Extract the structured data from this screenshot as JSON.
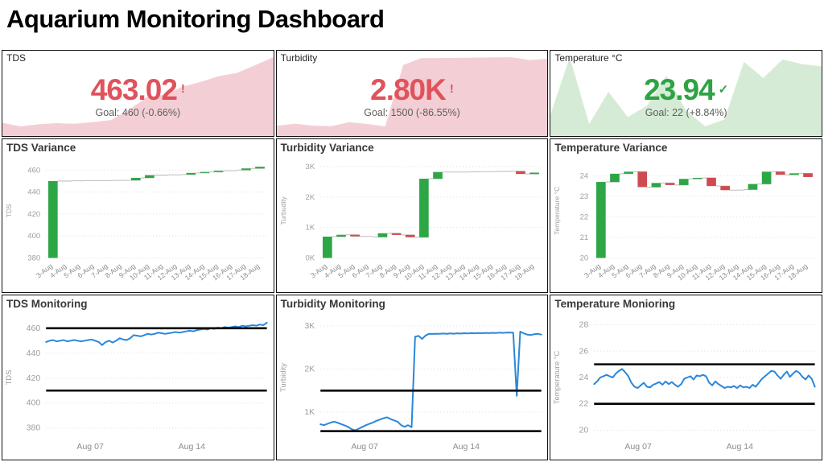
{
  "page": {
    "title": "Aquarium Monitoring Dashboard"
  },
  "colors": {
    "increase_green": "#2DA646",
    "decrease_red": "#CE4B52",
    "connector_gray": "#BDBDBD",
    "line_blue": "#2B87DA",
    "grid_gray": "#DCDCDC",
    "tick_gray": "#9E9E9E",
    "axis_label_gray": "#8C8C8C",
    "ref_line_black": "#000000",
    "kpi_red": "#E0535C",
    "kpi_red_fill": "#F3CFD5",
    "kpi_green": "#2FA344",
    "kpi_green_fill": "#D5EBD5"
  },
  "chart_data": [
    {
      "id": "tds-kpi",
      "type": "area",
      "title": "TDS",
      "value": "463.02",
      "badge": "!",
      "status": "off-goal",
      "goal": "Goal: 460 (-0.66%)",
      "accent": "#E0535C",
      "fill": "#F3CFD5",
      "values": [
        450.5,
        449.8,
        450.2,
        450.4,
        450.3,
        450.6,
        451,
        452.9,
        455.4,
        455.9,
        457.4,
        458.3,
        459.4,
        460.0,
        461.5,
        463.0
      ]
    },
    {
      "id": "tds-variance",
      "type": "waterfall",
      "title": "TDS Variance",
      "y_label": "TDS",
      "baseline": 380,
      "ylim": [
        380,
        466
      ],
      "y_ticks": [
        380,
        400,
        420,
        440,
        460
      ],
      "tick_labels": [
        "380",
        "400",
        "420",
        "440",
        "460"
      ],
      "categories": [
        "3-Aug",
        "4-Aug",
        "5-Aug",
        "6-Aug",
        "7-Aug",
        "8-Aug",
        "9-Aug",
        "10-Aug",
        "11-Aug",
        "12-Aug",
        "13-Aug",
        "14-Aug",
        "15-Aug",
        "16-Aug",
        "17-Aug",
        "18-Aug"
      ],
      "cumulative": [
        450.0,
        450.2,
        450.4,
        450.4,
        450.6,
        450.7,
        452.9,
        455.4,
        455.6,
        455.9,
        457.4,
        458.3,
        459.4,
        460.0,
        461.5,
        463.0
      ]
    },
    {
      "id": "tds-monitoring",
      "type": "line",
      "title": "TDS Monitoring",
      "y_label": "TDS",
      "ylim": [
        374,
        467
      ],
      "y_ticks": [
        380,
        400,
        420,
        440,
        460
      ],
      "tick_labels": [
        "380",
        "400",
        "420",
        "440",
        "460"
      ],
      "ref_lines": [
        460,
        410
      ],
      "x_labels": [
        {
          "label": "Aug 07",
          "f": 0.2
        },
        {
          "label": "Aug 14",
          "f": 0.66
        }
      ],
      "values": [
        449,
        450,
        450.5,
        449.5,
        450,
        450.5,
        449.5,
        450,
        450.5,
        450,
        449.5,
        450,
        450.5,
        451,
        450,
        449,
        446.5,
        449,
        450,
        448.5,
        450,
        452,
        451,
        450.5,
        452,
        454.5,
        454,
        453.5,
        454.5,
        455.5,
        455,
        455.5,
        456.5,
        456,
        455.5,
        456,
        456.5,
        457,
        456.5,
        457,
        457.5,
        458,
        457.5,
        458.5,
        459,
        459.5,
        459,
        460,
        459.5,
        460.5,
        460,
        461,
        460.5,
        461,
        461.5,
        461,
        462,
        461.5,
        462,
        462.5,
        462,
        463,
        462.5,
        464.5
      ]
    },
    {
      "id": "turbidity-kpi",
      "type": "area",
      "title": "Turbidity",
      "value": "2.80K",
      "badge": "!",
      "status": "off-goal",
      "goal": "Goal: 1500 (-86.55%)",
      "accent": "#E0535C",
      "fill": "#F3CFD5",
      "values": [
        700,
        760,
        705,
        685,
        810,
        755,
        680,
        2600,
        2820,
        2818,
        2825,
        2832,
        2840,
        2845,
        2755,
        2800
      ]
    },
    {
      "id": "turbidity-variance",
      "type": "waterfall",
      "title": "Turbidity Variance",
      "y_label": "Turbudity",
      "baseline": 0,
      "ylim": [
        0,
        3100
      ],
      "y_ticks": [
        0,
        1000,
        2000,
        3000
      ],
      "tick_labels": [
        "0K",
        "1K",
        "2K",
        "3K"
      ],
      "categories": [
        "3-Aug",
        "4-Aug",
        "5-Aug",
        "6-Aug",
        "7-Aug",
        "8-Aug",
        "9-Aug",
        "10-Aug",
        "11-Aug",
        "12-Aug",
        "13-Aug",
        "14-Aug",
        "15-Aug",
        "16-Aug",
        "17-Aug",
        "18-Aug"
      ],
      "cumulative": [
        700,
        760,
        705,
        685,
        810,
        755,
        680,
        2600,
        2820,
        2818,
        2825,
        2832,
        2840,
        2845,
        2755,
        2800
      ]
    },
    {
      "id": "turbidity-monitoring",
      "type": "line",
      "title": "Turbidity Monitoring",
      "y_label": "Turbidity",
      "ylim": [
        460,
        3150
      ],
      "y_ticks": [
        1000,
        2000,
        3000
      ],
      "tick_labels": [
        "1K",
        "2K",
        "3K"
      ],
      "ref_lines": [
        1500,
        560
      ],
      "x_labels": [
        {
          "label": "Aug 07",
          "f": 0.2
        },
        {
          "label": "Aug 14",
          "f": 0.66
        }
      ],
      "values": [
        720,
        700,
        730,
        760,
        780,
        750,
        720,
        690,
        650,
        600,
        580,
        620,
        660,
        700,
        730,
        760,
        800,
        830,
        860,
        880,
        840,
        810,
        780,
        700,
        660,
        700,
        650,
        2750,
        2770,
        2700,
        2780,
        2820,
        2815,
        2822,
        2818,
        2825,
        2820,
        2828,
        2822,
        2830,
        2825,
        2832,
        2828,
        2835,
        2830,
        2838,
        2832,
        2840,
        2835,
        2842,
        2838,
        2845,
        2840,
        2848,
        2850,
        2845,
        1380,
        2870,
        2830,
        2800,
        2790,
        2810,
        2820,
        2800
      ]
    },
    {
      "id": "temperature-kpi",
      "type": "area",
      "title": "Temperature °C",
      "value": "23.94",
      "badge": "✓",
      "status": "on-goal",
      "goal": "Goal: 22 (+8.84%)",
      "accent": "#2FA344",
      "fill": "#D5EBD5",
      "values": [
        23.4,
        24.65,
        23.2,
        23.9,
        23.35,
        23.6,
        24.25,
        23.5,
        23.15,
        23.3,
        24.55,
        24.2,
        24.6,
        24.5,
        24.45
      ]
    },
    {
      "id": "temperature-variance",
      "type": "waterfall",
      "title": "Temperature Variance",
      "y_label": "Temperature °C",
      "baseline": 20,
      "ylim": [
        20,
        24.6
      ],
      "y_ticks": [
        20,
        21,
        22,
        23,
        24
      ],
      "tick_labels": [
        "20",
        "21",
        "22",
        "23",
        "24"
      ],
      "categories": [
        "3-Aug",
        "4-Aug",
        "5-Aug",
        "6-Aug",
        "7-Aug",
        "8-Aug",
        "9-Aug",
        "10-Aug",
        "11-Aug",
        "12-Aug",
        "13-Aug",
        "14-Aug",
        "15-Aug",
        "16-Aug",
        "17-Aug",
        "18-Aug"
      ],
      "cumulative": [
        23.7,
        24.1,
        24.2,
        23.45,
        23.65,
        23.55,
        23.85,
        23.9,
        23.5,
        23.3,
        23.33,
        23.6,
        24.2,
        24.05,
        24.12,
        23.94
      ]
    },
    {
      "id": "temperature-monitoring",
      "type": "line",
      "title": "Temperature Monioring",
      "y_label": "Temperature °C",
      "ylim": [
        19.6,
        28.4
      ],
      "y_ticks": [
        20,
        22,
        24,
        26,
        28
      ],
      "tick_labels": [
        "20",
        "22",
        "24",
        "26",
        "28"
      ],
      "ref_lines": [
        25,
        22
      ],
      "x_labels": [
        {
          "label": "Aug 07",
          "f": 0.2
        },
        {
          "label": "Aug 14",
          "f": 0.66
        }
      ],
      "values": [
        23.5,
        23.7,
        24.0,
        24.1,
        24.2,
        24.1,
        24.0,
        24.3,
        24.5,
        24.65,
        24.4,
        24.1,
        23.6,
        23.3,
        23.2,
        23.4,
        23.6,
        23.3,
        23.25,
        23.45,
        23.55,
        23.65,
        23.45,
        23.7,
        23.5,
        23.65,
        23.45,
        23.3,
        23.5,
        23.9,
        24.0,
        24.1,
        23.85,
        24.15,
        24.1,
        24.2,
        24.1,
        23.6,
        23.4,
        23.7,
        23.5,
        23.35,
        23.2,
        23.3,
        23.25,
        23.35,
        23.2,
        23.4,
        23.25,
        23.3,
        23.2,
        23.45,
        23.3,
        23.6,
        23.9,
        24.1,
        24.3,
        24.5,
        24.45,
        24.15,
        23.9,
        24.2,
        24.45,
        24.05,
        24.3,
        24.5,
        24.35,
        24.05,
        23.85,
        24.15,
        23.9,
        23.3
      ]
    }
  ]
}
